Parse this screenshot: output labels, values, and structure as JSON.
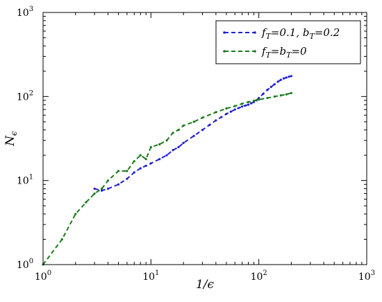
{
  "chart_data": {
    "type": "line",
    "title": "",
    "xlabel": "1/ϵ",
    "ylabel": "N_ϵ",
    "xscale": "log",
    "yscale": "log",
    "xlim": [
      1,
      1000
    ],
    "ylim": [
      1,
      1000
    ],
    "grid": false,
    "legend_position": "top-right",
    "x_ticks": [
      {
        "base": "10",
        "exp": "0"
      },
      {
        "base": "10",
        "exp": "1"
      },
      {
        "base": "10",
        "exp": "2"
      },
      {
        "base": "10",
        "exp": "3"
      }
    ],
    "y_ticks": [
      {
        "base": "10",
        "exp": "0"
      },
      {
        "base": "10",
        "exp": "1"
      },
      {
        "base": "10",
        "exp": "2"
      },
      {
        "base": "10",
        "exp": "3"
      }
    ],
    "series": [
      {
        "name": "f_T=0.1,  b_T=0.2",
        "legend_parts": [
          {
            "t": "f",
            "s": "main"
          },
          {
            "t": "T",
            "s": "sub"
          },
          {
            "t": "=0.1,  ",
            "s": "main"
          },
          {
            "t": "b",
            "s": "main"
          },
          {
            "t": "T",
            "s": "sub"
          },
          {
            "t": "=0.2",
            "s": "main"
          }
        ],
        "color": "#1f1fd6",
        "style": "dashed",
        "x": [
          3,
          3.5,
          4,
          5,
          6,
          7,
          8,
          9,
          10,
          12,
          14,
          16,
          18,
          20,
          25,
          30,
          35,
          40,
          45,
          50,
          55,
          60,
          65,
          70,
          75,
          80,
          85,
          90,
          95,
          100,
          110,
          120,
          130,
          140,
          150,
          160,
          170,
          180,
          190,
          200
        ],
        "y": [
          8,
          7.6,
          8,
          9,
          10.5,
          12.5,
          14,
          15,
          16,
          18,
          20,
          23,
          25,
          28,
          34,
          40,
          46,
          52,
          57,
          62,
          66,
          70,
          73,
          76,
          78,
          80,
          83,
          86,
          90,
          96,
          108,
          120,
          130,
          140,
          150,
          158,
          164,
          168,
          172,
          175
        ]
      },
      {
        "name": "f_T=b_T=0",
        "legend_parts": [
          {
            "t": "f",
            "s": "main"
          },
          {
            "t": "T",
            "s": "sub"
          },
          {
            "t": "=",
            "s": "main"
          },
          {
            "t": "b",
            "s": "main"
          },
          {
            "t": "T",
            "s": "sub"
          },
          {
            "t": "=0",
            "s": "main"
          }
        ],
        "color": "#197a19",
        "style": "dashed",
        "x": [
          1,
          1.5,
          2,
          2.5,
          3,
          3.5,
          4,
          5,
          6,
          7,
          8,
          9,
          10,
          12,
          14,
          16,
          18,
          20,
          25,
          30,
          40,
          50,
          60,
          70,
          80,
          90,
          100,
          120,
          140,
          160,
          180,
          200
        ],
        "y": [
          1,
          2,
          4,
          5.5,
          7,
          8,
          10,
          13,
          13,
          17,
          20,
          18,
          25,
          27,
          30,
          37,
          40,
          45,
          50,
          56,
          65,
          72,
          77,
          82,
          86,
          89,
          92,
          96,
          100,
          103,
          106,
          110
        ]
      }
    ]
  }
}
